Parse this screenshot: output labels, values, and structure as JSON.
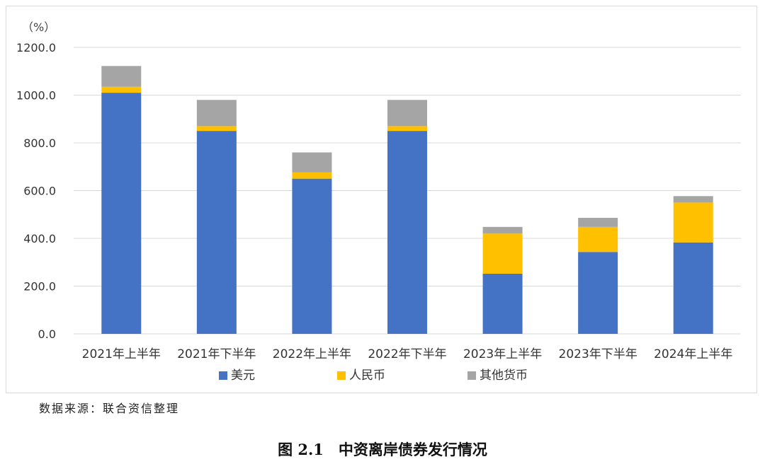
{
  "chart_data": {
    "type": "bar",
    "stacked": true,
    "unit_label": "（%）",
    "categories": [
      "2021年上半年",
      "2021年下半年",
      "2022年上半年",
      "2022年下半年",
      "2023年上半年",
      "2023年下半年",
      "2024年上半年"
    ],
    "series": [
      {
        "name": "美元",
        "color": "#4472C4",
        "values": [
          1010,
          850,
          650,
          850,
          252,
          343,
          383
        ]
      },
      {
        "name": "人民币",
        "color": "#FFC000",
        "values": [
          25,
          20,
          27,
          20,
          168,
          105,
          167
        ]
      },
      {
        "name": "其他货币",
        "color": "#A5A5A5",
        "values": [
          87,
          110,
          83,
          110,
          28,
          38,
          27
        ]
      }
    ],
    "ylim": [
      0,
      1200
    ],
    "yticks": [
      "0.0",
      "200.0",
      "400.0",
      "600.0",
      "800.0",
      "1000.0",
      "1200.0"
    ],
    "grid": true,
    "legend_position": "bottom"
  },
  "source_note": "数据来源：联合资信整理",
  "figure_caption": "图 2.1　中资离岸债券发行情况"
}
